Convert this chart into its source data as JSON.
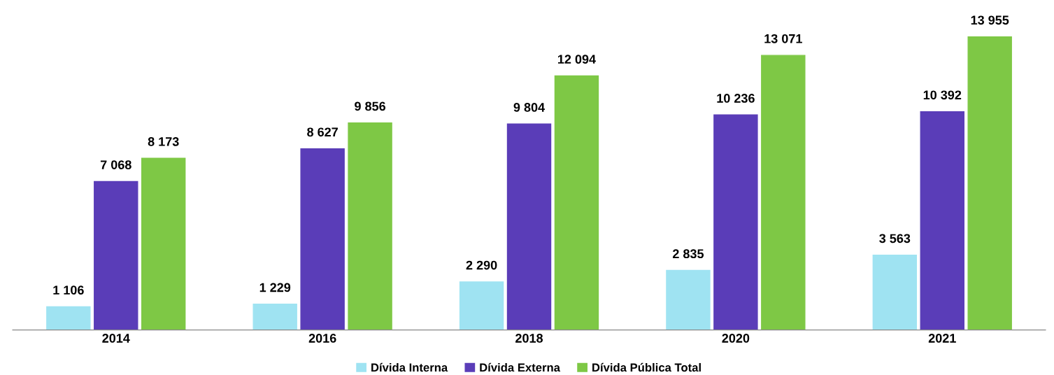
{
  "chart_data": {
    "type": "bar",
    "categories": [
      "2014",
      "2016",
      "2018",
      "2020",
      "2021"
    ],
    "series": [
      {
        "name": "Dívida Interna",
        "color": "#9fe3f2",
        "values": [
          1106,
          1229,
          2290,
          2835,
          3563
        ],
        "value_labels": [
          "1 106",
          "1 229",
          "2 290",
          "2 835",
          "3 563"
        ]
      },
      {
        "name": "Dívida Externa",
        "color": "#5a3db8",
        "values": [
          7068,
          8627,
          9804,
          10236,
          10392
        ],
        "value_labels": [
          "7 068",
          "8 627",
          "9 804",
          "10 236",
          "10 392"
        ]
      },
      {
        "name": "Dívida Pública Total",
        "color": "#7ec845",
        "values": [
          8173,
          9856,
          12094,
          13071,
          13955
        ],
        "value_labels": [
          "8 173",
          "9 856",
          "12 094",
          "13 071",
          "13 955"
        ]
      }
    ],
    "legend": "bottom",
    "grid": false
  }
}
